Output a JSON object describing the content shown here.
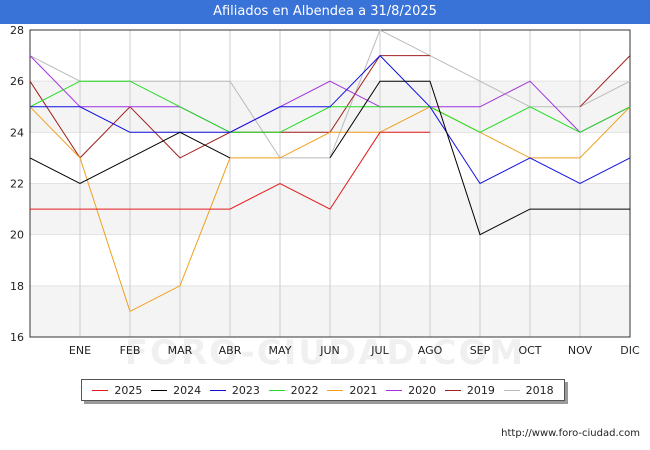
{
  "header": {
    "title": "Afiliados en Albendea a 31/8/2025"
  },
  "watermark": "FORO-CIUDAD.COM",
  "footer": {
    "source": "http://www.foro-ciudad.com"
  },
  "chart_data": {
    "type": "line",
    "title": "Afiliados en Albendea a 31/8/2025",
    "xlabel": "",
    "ylabel": "",
    "ylim": [
      16,
      28
    ],
    "yticks": [
      16,
      18,
      20,
      22,
      24,
      26,
      28
    ],
    "categories": [
      "",
      "ENE",
      "FEB",
      "MAR",
      "ABR",
      "MAY",
      "JUN",
      "JUL",
      "AGO",
      "SEP",
      "OCT",
      "NOV",
      "DIC"
    ],
    "grid": "horizontal bands",
    "legend_position": "bottom",
    "series": [
      {
        "name": "2025",
        "color": "#e31a1c",
        "values": [
          21,
          21,
          21,
          21,
          21,
          22,
          21,
          24,
          24,
          null,
          null,
          null,
          null
        ]
      },
      {
        "name": "2024",
        "color": "#000000",
        "values": [
          23,
          22,
          23,
          24,
          23,
          null,
          23,
          26,
          26,
          20,
          21,
          21,
          21
        ]
      },
      {
        "name": "2023",
        "color": "#1010e0",
        "values": [
          25,
          25,
          24,
          24,
          24,
          25,
          25,
          27,
          25,
          22,
          23,
          22,
          23
        ]
      },
      {
        "name": "2022",
        "color": "#22dd22",
        "values": [
          25,
          26,
          26,
          25,
          24,
          24,
          25,
          25,
          25,
          24,
          25,
          24,
          25
        ]
      },
      {
        "name": "2021",
        "color": "#f0a020",
        "values": [
          25,
          23,
          17,
          18,
          23,
          23,
          24,
          24,
          25,
          24,
          23,
          23,
          25
        ]
      },
      {
        "name": "2020",
        "color": "#a030e0",
        "values": [
          27,
          25,
          25,
          25,
          24,
          25,
          26,
          25,
          25,
          25,
          26,
          24,
          25
        ]
      },
      {
        "name": "2019",
        "color": "#a02020",
        "values": [
          26,
          23,
          25,
          23,
          24,
          24,
          24,
          27,
          27,
          null,
          null,
          25,
          27
        ]
      },
      {
        "name": "2018",
        "color": "#bbbbbb",
        "values": [
          27,
          26,
          26,
          26,
          26,
          23,
          23,
          28,
          27,
          26,
          25,
          25,
          26
        ]
      }
    ]
  }
}
